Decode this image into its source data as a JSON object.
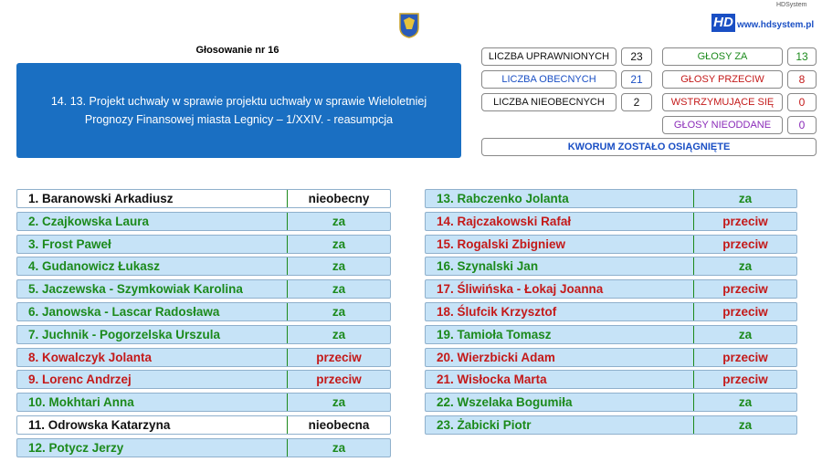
{
  "header": {
    "brand_small": "HDSystem",
    "logo": "HD",
    "website": "www.hdsystem.pl",
    "vote_title": "Głosowanie nr 16",
    "topic": "14. 13. Projekt uchwały w sprawie projektu uchwały w sprawie Wieloletniej Prognozy Finansowej miasta Legnicy – 1/XXIV. - reasumpcja"
  },
  "stats": {
    "left": [
      {
        "label": "LICZBA UPRAWNIONYCH",
        "value": 23,
        "color": "#111111"
      },
      {
        "label": "LICZBA OBECNYCH",
        "value": 21,
        "color": "#1a4fc4"
      },
      {
        "label": "LICZBA NIEOBECNYCH",
        "value": 2,
        "color": "#111111"
      }
    ],
    "right": [
      {
        "label": "GŁOSY ZA",
        "value": 13,
        "color": "#1c8a1c"
      },
      {
        "label": "GŁOSY PRZECIW",
        "value": 8,
        "color": "#c41a1a"
      },
      {
        "label": "WSTRZYMUJĄCE SIĘ",
        "value": 0,
        "color": "#c41a1a"
      },
      {
        "label": "GŁOSY NIEODDANE",
        "value": 0,
        "color": "#8a2ab8"
      }
    ],
    "quorum": {
      "label": "KWORUM ZOSTAŁO OSIĄGNIĘTE",
      "color": "#1a4fc4"
    }
  },
  "voters": {
    "left": [
      {
        "name": "1. Baranowski Arkadiusz",
        "vote": "nieobecny",
        "color": "#111111",
        "background": "#ffffff"
      },
      {
        "name": "2. Czajkowska Laura",
        "vote": "za",
        "color": "#1c8a1c",
        "background": "#c6e3f7"
      },
      {
        "name": "3. Frost Paweł",
        "vote": "za",
        "color": "#1c8a1c",
        "background": "#c6e3f7"
      },
      {
        "name": "4. Gudanowicz Łukasz",
        "vote": "za",
        "color": "#1c8a1c",
        "background": "#c6e3f7"
      },
      {
        "name": "5. Jaczewska - Szymkowiak Karolina",
        "vote": "za",
        "color": "#1c8a1c",
        "background": "#c6e3f7"
      },
      {
        "name": "6. Janowska - Lascar Radosława",
        "vote": "za",
        "color": "#1c8a1c",
        "background": "#c6e3f7"
      },
      {
        "name": "7. Juchnik - Pogorzelska Urszula",
        "vote": "za",
        "color": "#1c8a1c",
        "background": "#c6e3f7"
      },
      {
        "name": "8. Kowalczyk Jolanta",
        "vote": "przeciw",
        "color": "#c41a1a",
        "background": "#c6e3f7"
      },
      {
        "name": "9. Lorenc Andrzej",
        "vote": "przeciw",
        "color": "#c41a1a",
        "background": "#c6e3f7"
      },
      {
        "name": "10. Mokhtari Anna",
        "vote": "za",
        "color": "#1c8a1c",
        "background": "#c6e3f7"
      },
      {
        "name": "11. Odrowska Katarzyna",
        "vote": "nieobecna",
        "color": "#111111",
        "background": "#ffffff"
      },
      {
        "name": "12. Potycz Jerzy",
        "vote": "za",
        "color": "#1c8a1c",
        "background": "#c6e3f7"
      }
    ],
    "right": [
      {
        "name": "13. Rabczenko Jolanta",
        "vote": "za",
        "color": "#1c8a1c",
        "background": "#c6e3f7"
      },
      {
        "name": "14. Rajczakowski Rafał",
        "vote": "przeciw",
        "color": "#c41a1a",
        "background": "#c6e3f7"
      },
      {
        "name": "15. Rogalski Zbigniew",
        "vote": "przeciw",
        "color": "#c41a1a",
        "background": "#c6e3f7"
      },
      {
        "name": "16. Szynalski Jan",
        "vote": "za",
        "color": "#1c8a1c",
        "background": "#c6e3f7"
      },
      {
        "name": "17. Śliwińska - Łokaj Joanna",
        "vote": "przeciw",
        "color": "#c41a1a",
        "background": "#c6e3f7"
      },
      {
        "name": "18. Ślufcik Krzysztof",
        "vote": "przeciw",
        "color": "#c41a1a",
        "background": "#c6e3f7"
      },
      {
        "name": "19. Tamioła Tomasz",
        "vote": "za",
        "color": "#1c8a1c",
        "background": "#c6e3f7"
      },
      {
        "name": "20. Wierzbicki Adam",
        "vote": "przeciw",
        "color": "#c41a1a",
        "background": "#c6e3f7"
      },
      {
        "name": "21. Wisłocka Marta",
        "vote": "przeciw",
        "color": "#c41a1a",
        "background": "#c6e3f7"
      },
      {
        "name": "22. Wszelaka Bogumiła",
        "vote": "za",
        "color": "#1c8a1c",
        "background": "#c6e3f7"
      },
      {
        "name": "23. Żabicki Piotr",
        "vote": "za",
        "color": "#1c8a1c",
        "background": "#c6e3f7"
      }
    ]
  }
}
